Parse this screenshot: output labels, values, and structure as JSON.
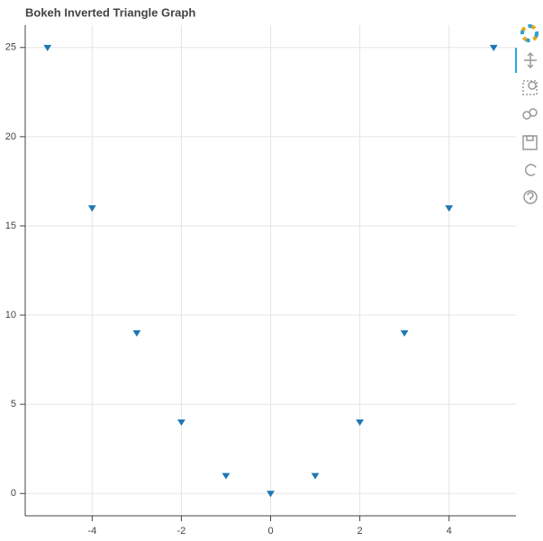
{
  "chart_data": {
    "type": "scatter",
    "title": "Bokeh Inverted Triangle Graph",
    "x": [
      -5,
      -4,
      -3,
      -2,
      -1,
      0,
      1,
      2,
      3,
      4,
      5
    ],
    "values": [
      25,
      16,
      9,
      4,
      1,
      0,
      1,
      4,
      9,
      16,
      25
    ],
    "color": "#1f77b4",
    "marker": "inverted_triangle",
    "xlim": [
      -5.5,
      5.5
    ],
    "ylim": [
      -1.25,
      26.25
    ],
    "xticks": [
      -4,
      -2,
      0,
      2,
      4
    ],
    "yticks": [
      0,
      5,
      10,
      15,
      20,
      25
    ],
    "grid": true
  }
}
